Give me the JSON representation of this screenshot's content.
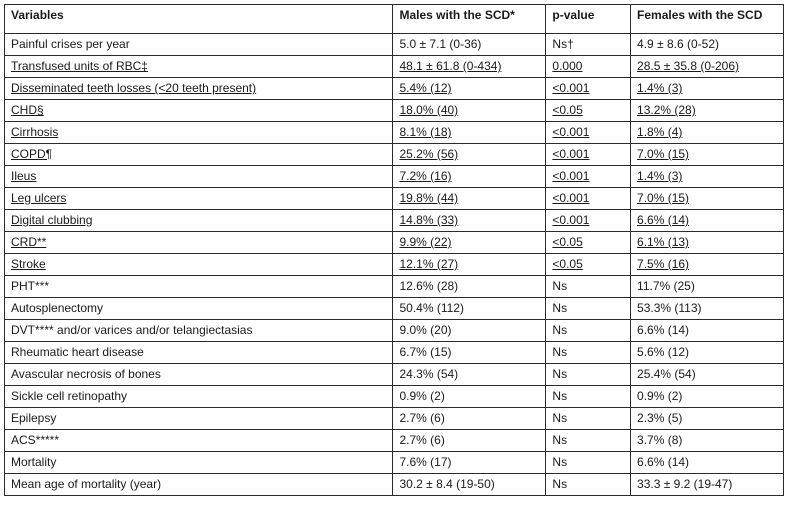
{
  "table": {
    "headers": [
      "Variables",
      "Males with the SCD*",
      "p-value",
      "Females with the SCD"
    ],
    "rows": [
      {
        "variable": "Painful crises per year",
        "males": "5.0 ± 7.1 (0-36)",
        "p": "Ns†",
        "females": "4.9 ± 8.6 (0-52)",
        "underlined": false
      },
      {
        "variable": "Transfused units of RBC‡",
        "males": "48.1 ± 61.8 (0-434)",
        "p": "0.000",
        "females": "28.5 ± 35.8 (0-206)",
        "underlined": true
      },
      {
        "variable": "Disseminated teeth losses (<20 teeth present)",
        "males": "5.4% (12)",
        "p": "<0.001",
        "females": "1.4% (3)",
        "underlined": true
      },
      {
        "variable": "CHD§",
        "males": "18.0% (40)",
        "p": "<0.05",
        "females": "13.2% (28)",
        "underlined": true
      },
      {
        "variable": "Cirrhosis",
        "males": "8.1% (18)",
        "p": "<0.001",
        "females": "1.8% (4)",
        "underlined": true
      },
      {
        "variable": "COPD¶",
        "males": "25.2% (56)",
        "p": "<0.001",
        "females": "7.0% (15)",
        "underlined": true
      },
      {
        "variable": "Ileus",
        "males": "7.2% (16)",
        "p": "<0.001",
        "females": "1.4% (3)",
        "underlined": true
      },
      {
        "variable": "Leg ulcers",
        "males": "19.8% (44)",
        "p": "<0.001",
        "females": "7.0% (15)",
        "underlined": true
      },
      {
        "variable": "Digital clubbing",
        "males": "14.8% (33)",
        "p": "<0.001",
        "females": "6.6% (14)",
        "underlined": true
      },
      {
        "variable": "CRD**",
        "males": "9.9% (22)",
        "p": "<0.05",
        "females": "6.1% (13)",
        "underlined": true
      },
      {
        "variable": "Stroke",
        "males": "12.1% (27)",
        "p": "<0.05",
        "females": "7.5% (16)",
        "underlined": true
      },
      {
        "variable": "PHT***",
        "males": "12.6% (28)",
        "p": "Ns",
        "females": "11.7% (25)",
        "underlined": false
      },
      {
        "variable": "Autosplenectomy",
        "males": "50.4% (112)",
        "p": "Ns",
        "females": "53.3% (113)",
        "underlined": false
      },
      {
        "variable": "DVT**** and/or varices and/or telangiectasias",
        "males": "9.0% (20)",
        "p": "Ns",
        "females": "6.6% (14)",
        "underlined": false
      },
      {
        "variable": "Rheumatic heart disease",
        "males": "6.7% (15)",
        "p": "Ns",
        "females": "5.6% (12)",
        "underlined": false
      },
      {
        "variable": "Avascular necrosis of bones",
        "males": "24.3% (54)",
        "p": "Ns",
        "females": "25.4% (54)",
        "underlined": false
      },
      {
        "variable": "Sickle cell retinopathy",
        "males": "0.9% (2)",
        "p": "Ns",
        "females": "0.9% (2)",
        "underlined": false
      },
      {
        "variable": "Epilepsy",
        "males": "2.7% (6)",
        "p": "Ns",
        "females": "2.3% (5)",
        "underlined": false
      },
      {
        "variable": "ACS*****",
        "males": "2.7% (6)",
        "p": "Ns",
        "females": "3.7% (8)",
        "underlined": false
      },
      {
        "variable": "Mortality",
        "males": "7.6% (17)",
        "p": "Ns",
        "females": "6.6% (14)",
        "underlined": false
      },
      {
        "variable": "Mean age of mortality (year)",
        "males": "30.2 ± 8.4 (19-50)",
        "p": "Ns",
        "females": "33.3 ± 9.2 (19-47)",
        "underlined": false
      }
    ]
  }
}
